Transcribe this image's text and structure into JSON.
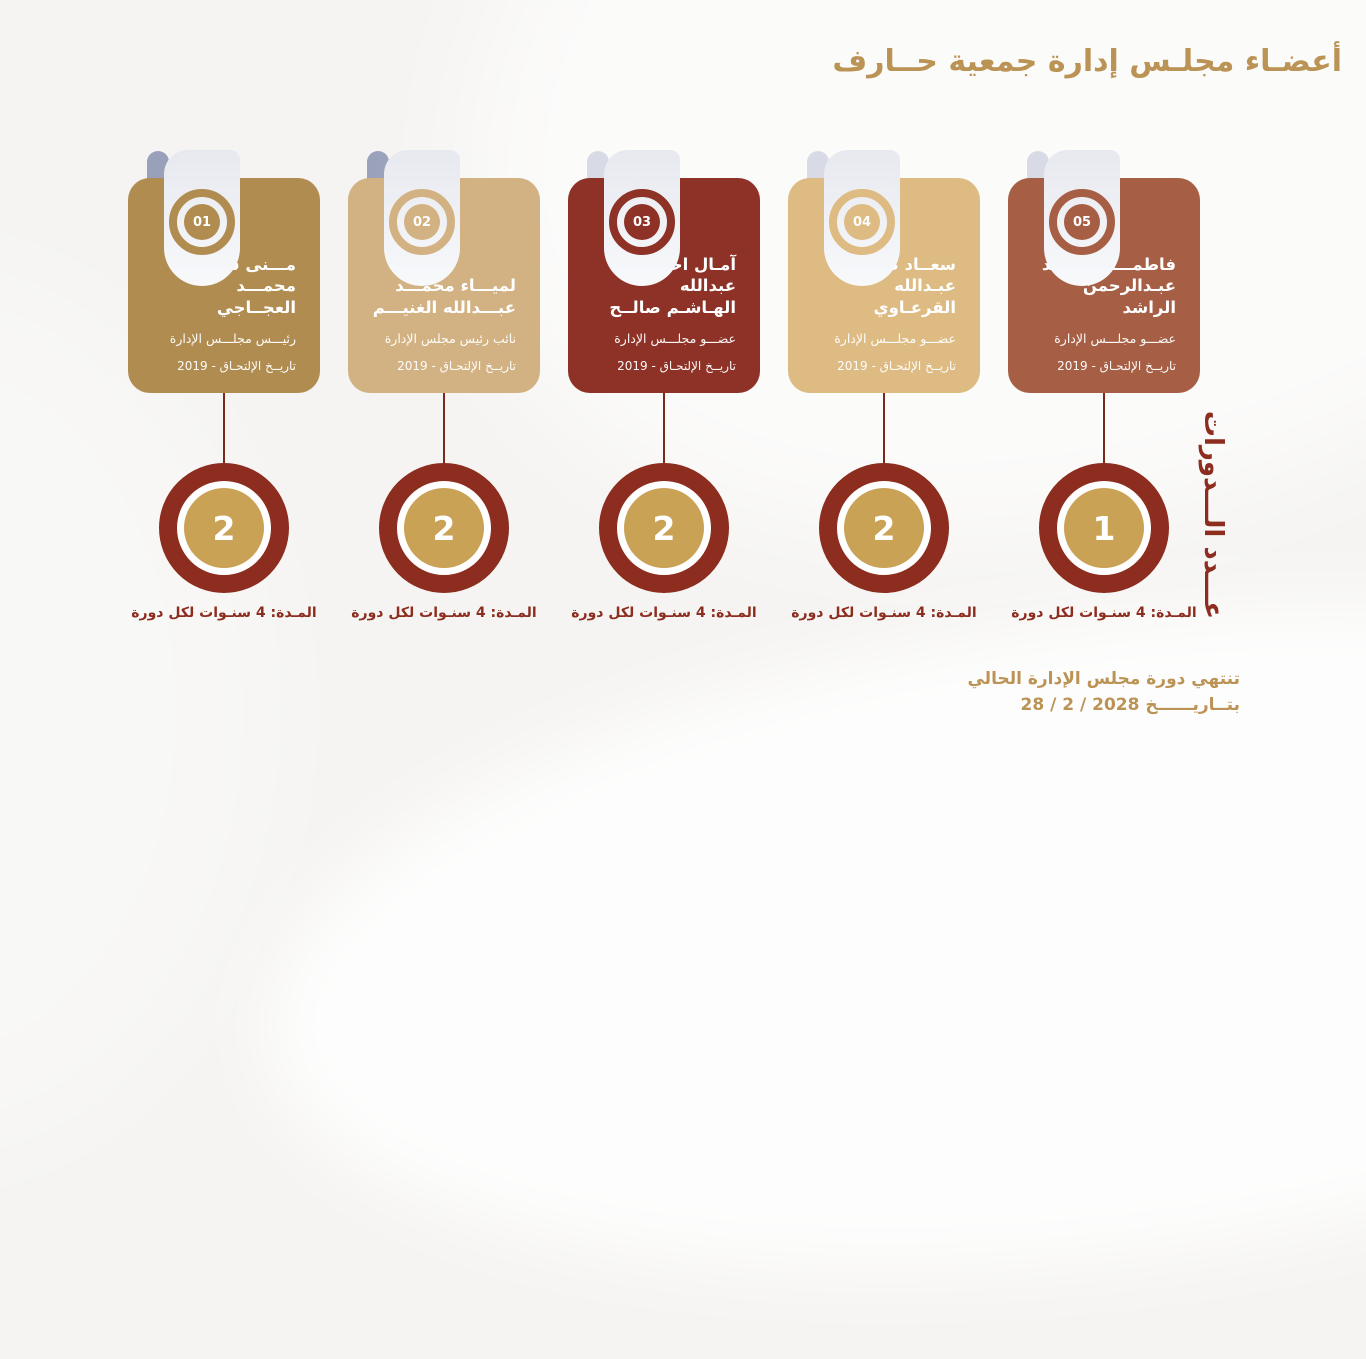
{
  "title": "أعضـاء مجلـس إدارة جمعية حــارف",
  "colors": {
    "bg": "#f5f4f2",
    "gold-text": "#bb9355",
    "maroon": "#8c2d1f",
    "gold-inner": "#c9a255",
    "connector": "#7a291d",
    "pill": "#99a1ba"
  },
  "members": [
    {
      "badge": "01",
      "name_line1": "مـــنى فهـــد",
      "name_line2": "محمـــد العجــاجي",
      "role": "رئيـــس مجلـــس الإدارة",
      "join": "تاريــخ الإلتحـاق - 2019",
      "terms": "2",
      "duration": "المـدة: 4 سنـوات لكل دورة",
      "card_color": "#b18c50"
    },
    {
      "badge": "02",
      "name_line1": "لميـــاء محمـــد",
      "name_line2": "عبـــدالله الغنيـــم",
      "role": "نائب رئيس مجلس الإدارة",
      "join": "تاريــخ الإلتحـاق - 2019",
      "terms": "2",
      "duration": "المـدة: 4 سنـوات لكل دورة",
      "card_color": "#d2b282"
    },
    {
      "badge": "03",
      "name_line1": "آمـال احمد عبدالله",
      "name_line2": "الهـاشـم صالــح",
      "role": "عضـــو مجلـــس الإدارة",
      "join": "تاريــخ الإلتحـاق - 2019",
      "terms": "2",
      "duration": "المـدة: 4 سنـوات لكل دورة",
      "card_color": "#8e3126"
    },
    {
      "badge": "04",
      "name_line1": "سعــاد صــالح",
      "name_line2": "عبـدالله القرعـاوي",
      "role": "عضـــو مجلـــس الإدارة",
      "join": "تاريــخ الإلتحـاق - 2019",
      "terms": "2",
      "duration": "المـدة: 4 سنـوات لكل دورة",
      "card_color": "#ddbb82"
    },
    {
      "badge": "05",
      "name_line1": "فاطمـــة راشـــد",
      "name_line2": "عبـدالرحمن الراشد",
      "role": "عضـــو مجلـــس الإدارة",
      "join": "تاريــخ الإلتحـاق - 2019",
      "terms": "1",
      "duration": "المـدة: 4 سنـوات لكل دورة",
      "card_color": "#a65f44"
    }
  ],
  "terms_axis_label": "عـــدد الـــدورات",
  "footer": {
    "line1": "تنتهي دورة مجلس الإدارة الحالي",
    "line2_prefix": "بتــاريــــــخ",
    "line2_date": "28 / 2 / 2028"
  }
}
